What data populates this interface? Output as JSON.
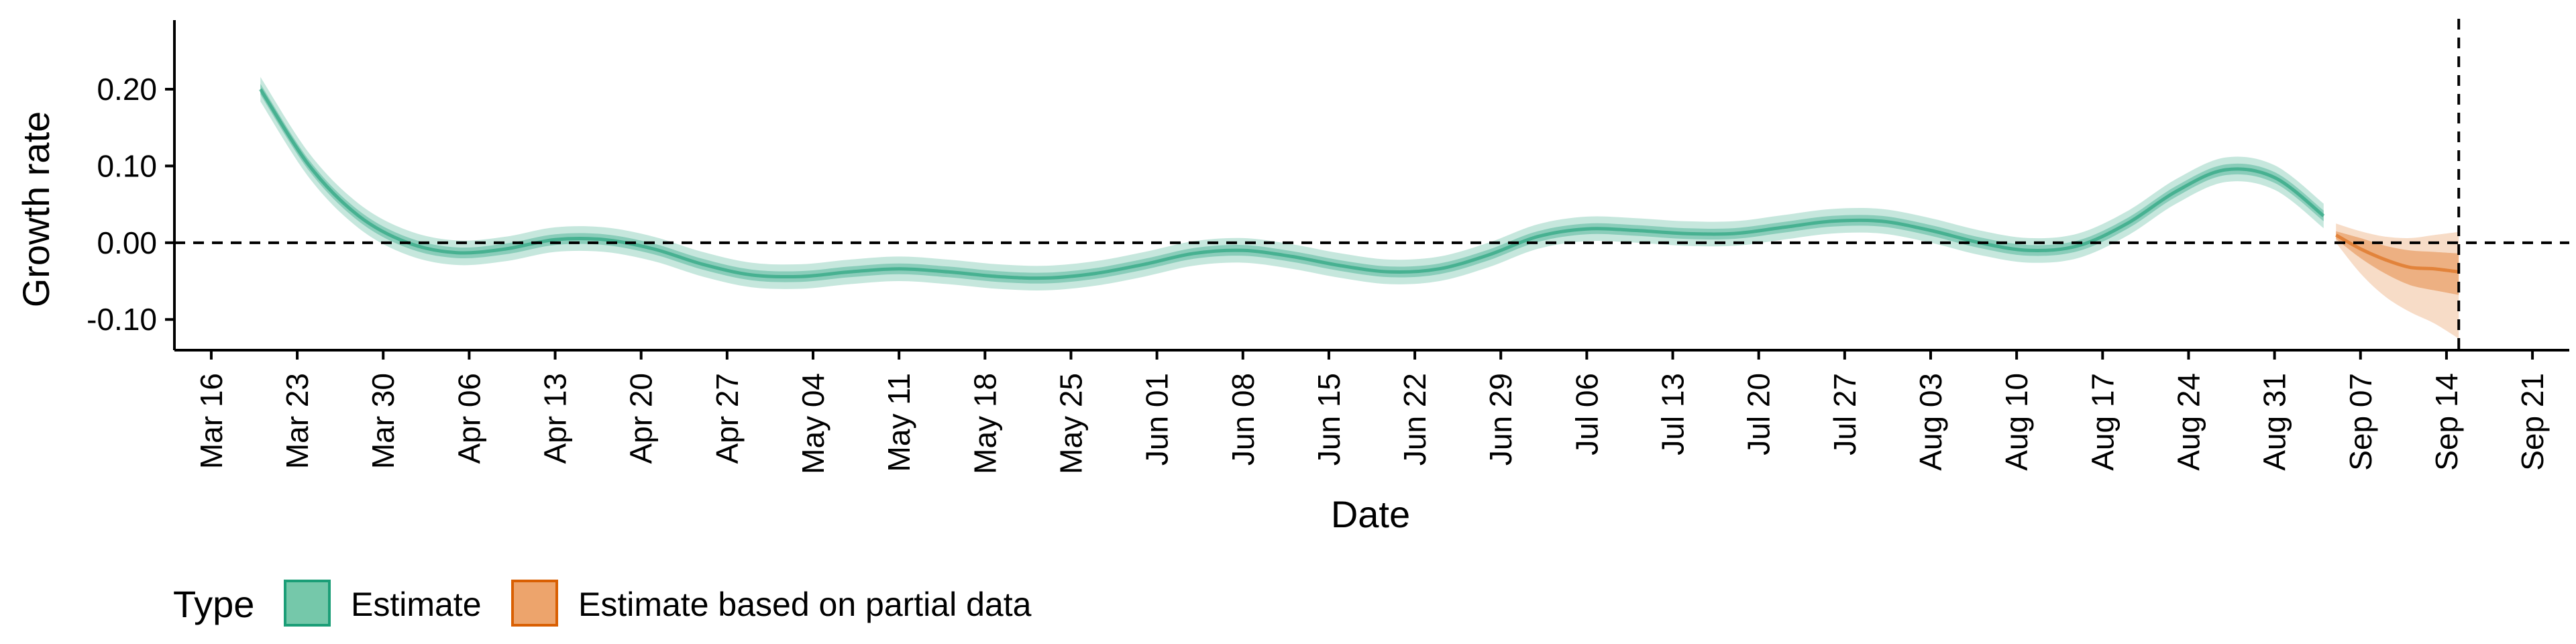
{
  "chart_data": {
    "type": "line",
    "title": "",
    "xlabel": "Date",
    "ylabel": "Growth rate",
    "x_ticks": [
      "Mar 16",
      "Mar 23",
      "Mar 30",
      "Apr 06",
      "Apr 13",
      "Apr 20",
      "Apr 27",
      "May 04",
      "May 11",
      "May 18",
      "May 25",
      "Jun 01",
      "Jun 08",
      "Jun 15",
      "Jun 22",
      "Jun 29",
      "Jul 06",
      "Jul 13",
      "Jul 20",
      "Jul 27",
      "Aug 03",
      "Aug 10",
      "Aug 17",
      "Aug 24",
      "Aug 31",
      "Sep 07",
      "Sep 14",
      "Sep 21"
    ],
    "y_ticks": [
      "0.20",
      "0.10",
      "0.00",
      "-0.10"
    ],
    "ylim": [
      -0.14,
      0.29
    ],
    "xlim": [
      "2020-03-13",
      "2020-09-24"
    ],
    "reference_lines": {
      "horizontal_y": 0.0,
      "vertical_x": "2020-09-15"
    },
    "grid": false,
    "legend": {
      "title": "Type",
      "position": "bottom-left",
      "entries": [
        {
          "label": "Estimate",
          "color": "#1B9E77"
        },
        {
          "label": "Estimate based on partial data",
          "color": "#D95F02"
        }
      ]
    },
    "series": [
      {
        "name": "Estimate",
        "color": "#1B9E77",
        "x": [
          "2020-03-20",
          "2020-03-24",
          "2020-03-28",
          "2020-04-01",
          "2020-04-05",
          "2020-04-09",
          "2020-04-13",
          "2020-04-17",
          "2020-04-21",
          "2020-04-25",
          "2020-04-29",
          "2020-05-03",
          "2020-05-07",
          "2020-05-11",
          "2020-05-15",
          "2020-05-19",
          "2020-05-23",
          "2020-05-27",
          "2020-05-31",
          "2020-06-04",
          "2020-06-08",
          "2020-06-12",
          "2020-06-16",
          "2020-06-20",
          "2020-06-24",
          "2020-06-28",
          "2020-07-02",
          "2020-07-06",
          "2020-07-10",
          "2020-07-14",
          "2020-07-18",
          "2020-07-22",
          "2020-07-26",
          "2020-07-30",
          "2020-08-03",
          "2020-08-07",
          "2020-08-11",
          "2020-08-15",
          "2020-08-19",
          "2020-08-23",
          "2020-08-27",
          "2020-08-31",
          "2020-09-04"
        ],
        "y": [
          0.2,
          0.1,
          0.035,
          0.0,
          -0.013,
          -0.008,
          0.004,
          0.004,
          -0.008,
          -0.028,
          -0.042,
          -0.044,
          -0.038,
          -0.034,
          -0.038,
          -0.044,
          -0.046,
          -0.04,
          -0.028,
          -0.014,
          -0.01,
          -0.018,
          -0.03,
          -0.038,
          -0.034,
          -0.016,
          0.008,
          0.018,
          0.016,
          0.012,
          0.012,
          0.02,
          0.028,
          0.028,
          0.016,
          0.0,
          -0.01,
          -0.004,
          0.025,
          0.067,
          0.095,
          0.085,
          0.035
        ],
        "ci_inner_halfwidth": 0.007,
        "ci_outer_halfwidth": 0.016
      },
      {
        "name": "Estimate based on partial data",
        "color": "#D95F02",
        "x": [
          "2020-09-05",
          "2020-09-07",
          "2020-09-09",
          "2020-09-11",
          "2020-09-13",
          "2020-09-15"
        ],
        "y": [
          0.01,
          -0.008,
          -0.022,
          -0.032,
          -0.034,
          -0.038
        ],
        "ci_inner_upper": [
          0.015,
          0.006,
          -0.004,
          -0.01,
          -0.012,
          -0.014
        ],
        "ci_inner_lower": [
          0.005,
          -0.02,
          -0.04,
          -0.055,
          -0.062,
          -0.068
        ],
        "ci_outer_upper": [
          0.025,
          0.015,
          0.008,
          0.006,
          0.01,
          0.014
        ],
        "ci_outer_lower": [
          0.0,
          -0.04,
          -0.07,
          -0.09,
          -0.105,
          -0.125
        ]
      }
    ]
  }
}
